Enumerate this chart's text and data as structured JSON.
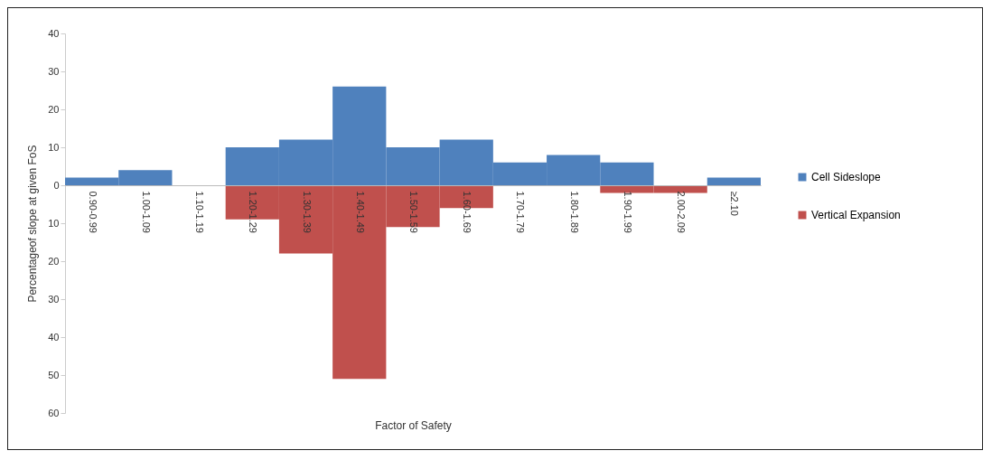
{
  "chart_data": {
    "type": "bar",
    "stacked": true,
    "xlabel": "Factor of Safety",
    "ylabel": "Percentageof slope at given FoS",
    "categories": [
      "0.90-0.99",
      "1.00-1.09",
      "1.10-1.19",
      "1.20-1.29",
      "1.30-1.39",
      "1.40-1.49",
      "1.50-1.59",
      "1.60-1.69",
      "1.70-1.79",
      "1.80-1.89",
      "1.90-1.99",
      "2.00-2.09",
      "≥2.10"
    ],
    "series": [
      {
        "name": "Cell Sideslope",
        "color": "#4f81bd",
        "values": [
          2,
          4,
          null,
          10,
          12,
          26,
          10,
          12,
          6,
          8,
          6,
          null,
          2
        ]
      },
      {
        "name": "Vertical Expansion",
        "color": "#c0504d",
        "values": [
          null,
          null,
          null,
          -9,
          -18,
          -51,
          -11,
          -6,
          null,
          null,
          -2,
          -2,
          null
        ]
      }
    ],
    "ylim": [
      -60,
      40
    ],
    "yticks": [
      {
        "value": -60,
        "label": "60"
      },
      {
        "value": -50,
        "label": "50"
      },
      {
        "value": -40,
        "label": "40"
      },
      {
        "value": -30,
        "label": "30"
      },
      {
        "value": -20,
        "label": "20"
      },
      {
        "value": -10,
        "label": "10"
      },
      0,
      10,
      20,
      30,
      40
    ],
    "grid": false,
    "legend": "right"
  }
}
